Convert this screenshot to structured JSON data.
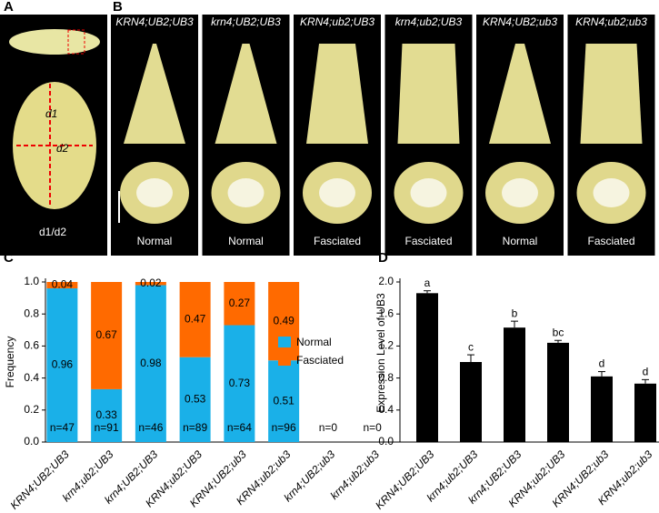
{
  "panels": {
    "A": {
      "label": "A",
      "d1": "d1",
      "d2": "d2",
      "ratio": "d1/d2"
    },
    "B": {
      "label": "B",
      "genotypes": [
        "KRN4;UB2;UB3",
        "krn4;UB2;UB3",
        "KRN4;ub2;UB3",
        "krn4;ub2;UB3",
        "KRN4;UB2;ub3",
        "KRN4;ub2;ub3"
      ],
      "phenotypes": [
        "Normal",
        "Normal",
        "Fasciated",
        "Fasciated",
        "Normal",
        "Fasciated"
      ]
    }
  },
  "chart_data": [
    {
      "type": "stacked_bar",
      "panel_label": "C",
      "y_label": "Frequency",
      "categories": [
        "KRN4;UB2;UB3",
        "krn4;ub2;UB3",
        "krn4;UB2;UB3",
        "KRN4;ub2;UB3",
        "KRN4;UB2;ub3",
        "KRN4;ub2;ub3",
        "krn4;UB2;ub3",
        "krn4;ub2;ub3"
      ],
      "series": [
        {
          "name": "Normal",
          "color": "#1ab0e8",
          "values": [
            0.96,
            0.33,
            0.98,
            0.53,
            0.73,
            0.51,
            null,
            null
          ]
        },
        {
          "name": "Fasciated",
          "color": "#ff6a00",
          "values": [
            0.04,
            0.67,
            0.02,
            0.47,
            0.27,
            0.49,
            null,
            null
          ]
        }
      ],
      "annotations": [
        "n=47",
        "n=91",
        "n=46",
        "n=89",
        "n=64",
        "n=96",
        "n=0",
        "n=0"
      ],
      "ylim": [
        0,
        1
      ],
      "yticks": [
        {
          "value": 0,
          "label": "0.0"
        },
        0.2,
        0.4,
        0.6,
        0.8,
        {
          "value": 1,
          "label": "1.0"
        }
      ],
      "legend": "right"
    },
    {
      "type": "bar",
      "panel_label": "D",
      "y_label": "Expression Level of UB3",
      "categories": [
        "KRN4;UB2;UB3",
        "krn4;ub2;UB3",
        "krn4;UB2;UB3",
        "KRN4;ub2;UB3",
        "KRN4;UB2;ub3",
        "KRN4;ub2;ub3"
      ],
      "values": [
        1.86,
        1.0,
        1.43,
        1.24,
        0.82,
        0.73
      ],
      "errors": [
        0.03,
        0.09,
        0.08,
        0.03,
        0.06,
        0.05
      ],
      "letters": [
        "a",
        "c",
        "b",
        "bc",
        "d",
        "d"
      ],
      "color": "#000000",
      "ylim": [
        0,
        2
      ],
      "yticks": [
        {
          "value": 0,
          "label": "0.0"
        },
        0.4,
        0.8,
        1.2,
        1.6,
        {
          "value": 2,
          "label": "2.0"
        }
      ]
    }
  ]
}
